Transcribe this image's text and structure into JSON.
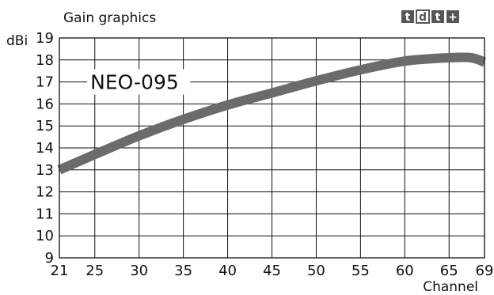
{
  "chart_data": {
    "type": "line",
    "title": "Gain graphics",
    "ylabel": "dBi",
    "xlabel": "Channel",
    "x_ticks": [
      21,
      25,
      30,
      35,
      40,
      45,
      50,
      55,
      60,
      65,
      69
    ],
    "y_ticks": [
      9,
      10,
      11,
      12,
      13,
      14,
      15,
      16,
      17,
      18,
      19
    ],
    "xlim": [
      21,
      69
    ],
    "ylim": [
      9,
      19
    ],
    "grid": true,
    "series": [
      {
        "name": "NEO-095",
        "color": "#6b6b6b",
        "points": [
          {
            "x": 21,
            "y": 13.0
          },
          {
            "x": 25,
            "y": 13.7
          },
          {
            "x": 30,
            "y": 14.55
          },
          {
            "x": 35,
            "y": 15.3
          },
          {
            "x": 40,
            "y": 15.95
          },
          {
            "x": 45,
            "y": 16.5
          },
          {
            "x": 50,
            "y": 17.05
          },
          {
            "x": 55,
            "y": 17.55
          },
          {
            "x": 60,
            "y": 17.95
          },
          {
            "x": 65,
            "y": 18.1
          },
          {
            "x": 67.5,
            "y": 18.1
          },
          {
            "x": 69,
            "y": 17.9
          }
        ]
      }
    ],
    "logo": {
      "letters": [
        "t",
        "d",
        "t",
        "+"
      ],
      "color": "#555555"
    }
  }
}
